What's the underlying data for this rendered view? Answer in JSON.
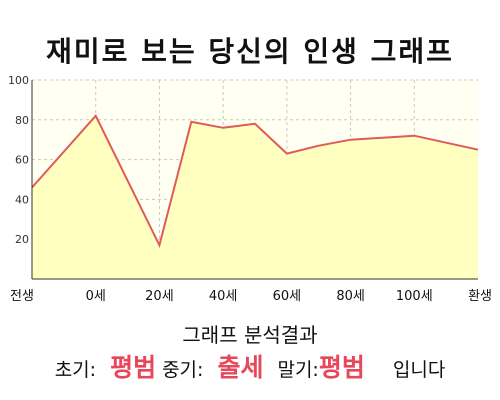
{
  "title": "재미로 보는 당신의 인생 그래프",
  "chart_data": {
    "type": "area",
    "ylim": [
      0,
      100
    ],
    "yticks": [
      20,
      40,
      60,
      80,
      100
    ],
    "grid": true,
    "categories": [
      "전생",
      "0세",
      "20세",
      "40세",
      "60세",
      "80세",
      "100세",
      "환생"
    ],
    "x": [
      -20,
      0,
      20,
      30,
      40,
      50,
      60,
      70,
      80,
      90,
      100,
      120
    ],
    "y": [
      46,
      82,
      17,
      79,
      76,
      78,
      63,
      67,
      70,
      71,
      72,
      65
    ],
    "colors": {
      "line": "#e05a5a",
      "fill": "#ffffc0",
      "plot_bg": "#fffff2",
      "grid": "#c8c8c8"
    }
  },
  "result": {
    "heading": "그래프 분석결과",
    "early_label": "초기:",
    "early_value": "평범",
    "middle_label": "중기:",
    "middle_value": "출세",
    "late_label": "말기:",
    "late_value": "평범",
    "suffix": "입니다"
  }
}
